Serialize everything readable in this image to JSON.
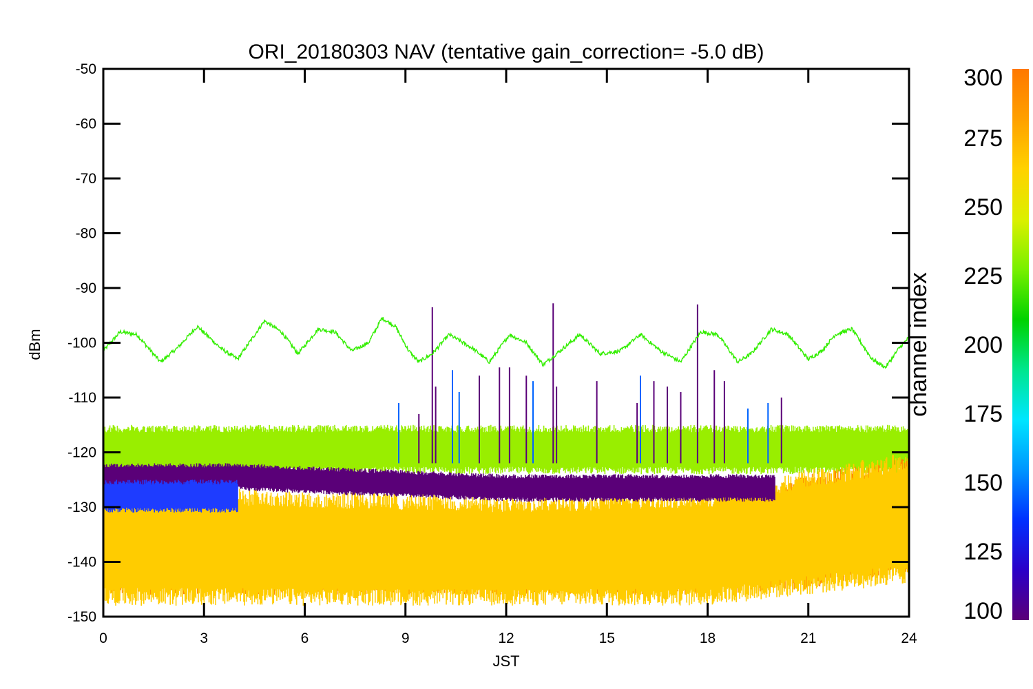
{
  "chart_data": {
    "type": "line",
    "title": "ORI_20180303 NAV (tentative gain_correction= -5.0 dB)",
    "xlabel": "JST",
    "ylabel": "dBm",
    "xlim": [
      0,
      24
    ],
    "ylim": [
      -150,
      -50
    ],
    "xticks": [
      "0",
      "3",
      "6",
      "9",
      "12",
      "15",
      "18",
      "21",
      "24"
    ],
    "yticks": [
      "-50",
      "-60",
      "-70",
      "-80",
      "-90",
      "-100",
      "-110",
      "-120",
      "-130",
      "-140",
      "-150"
    ],
    "grid": false,
    "colorbar": {
      "label": "channel index",
      "range": [
        100,
        300
      ],
      "ticks": [
        "300",
        "275",
        "250",
        "225",
        "200",
        "175",
        "150",
        "125",
        "100"
      ],
      "colors": [
        "#5a0078",
        "#2a00c8",
        "#0030ff",
        "#0096ff",
        "#00e6ff",
        "#00e68c",
        "#00d200",
        "#78f000",
        "#dcf000",
        "#ffd200",
        "#ffa000",
        "#ff7800"
      ]
    },
    "series": [
      {
        "color": "#33ee00",
        "style": "sinusoid",
        "x": [
          0,
          0.5,
          1.0,
          1.7,
          2.2,
          2.8,
          3.5,
          4.0,
          4.8,
          5.3,
          5.8,
          6.4,
          6.9,
          7.4,
          7.9,
          8.3,
          8.7,
          9.1,
          9.4,
          9.8,
          10.3,
          11.0,
          11.5,
          12.1,
          12.6,
          13.1,
          13.7,
          14.2,
          14.8,
          15.4,
          16.0,
          16.6,
          17.2,
          17.8,
          18.3,
          18.9,
          19.3,
          19.9,
          20.4,
          21.0,
          21.4,
          21.8,
          22.3,
          22.9,
          23.3,
          23.7,
          24.0
        ],
        "y": [
          -101.5,
          -98,
          -98.5,
          -103.5,
          -101,
          -97,
          -101,
          -103,
          -96,
          -98,
          -102,
          -97.5,
          -98,
          -101.5,
          -100,
          -95.5,
          -97,
          -101.5,
          -103.5,
          -102,
          -98.5,
          -101,
          -103.5,
          -98.5,
          -100,
          -104,
          -101,
          -98.5,
          -102,
          -101.5,
          -98.5,
          -101.5,
          -103.5,
          -98,
          -98.5,
          -103.5,
          -102,
          -97.5,
          -98.5,
          -103,
          -101.5,
          -98.5,
          -97.5,
          -103,
          -104.5,
          -101,
          -99
        ]
      },
      {
        "color": "#99ee00",
        "style": "noise-band",
        "x": [
          0,
          6,
          12,
          18,
          24
        ],
        "y_low": [
          -124,
          -124,
          -124,
          -124,
          -124
        ],
        "y_high": [
          -115,
          -115,
          -115,
          -115,
          -115
        ]
      },
      {
        "color": "#ff8800",
        "style": "noise-band",
        "x": [
          0,
          6,
          12,
          18,
          21,
          24
        ],
        "y_low": [
          -146,
          -146,
          -146,
          -146,
          -145,
          -142
        ],
        "y_high": [
          -129,
          -130,
          -131,
          -130,
          -124,
          -121
        ]
      },
      {
        "color": "#ffcc00",
        "style": "noise-band",
        "x": [
          0,
          6,
          12,
          18,
          21,
          24
        ],
        "y_low": [
          -148,
          -148,
          -148,
          -148,
          -146,
          -144
        ],
        "y_high": [
          -126,
          -127,
          -128,
          -127,
          -123,
          -120
        ]
      },
      {
        "color": "#5a0078",
        "style": "noise-band",
        "x": [
          0,
          4,
          8,
          12,
          16,
          20
        ],
        "y_low": [
          -127,
          -127,
          -128,
          -129,
          -129,
          -129
        ],
        "y_high": [
          -122,
          -122,
          -123,
          -124,
          -124,
          -124
        ]
      },
      {
        "color": "#1e3cff",
        "style": "noise-band",
        "x": [
          0,
          4
        ],
        "y_low": [
          -131,
          -131
        ],
        "y_high": [
          -125,
          -125
        ]
      }
    ],
    "spikes": [
      {
        "x": 9.8,
        "y": -93.5,
        "color": "#5a0078"
      },
      {
        "x": 9.9,
        "y": -108,
        "color": "#5a0078"
      },
      {
        "x": 10.4,
        "y": -105,
        "color": "#0064ff"
      },
      {
        "x": 10.6,
        "y": -109,
        "color": "#0064ff"
      },
      {
        "x": 11.2,
        "y": -106,
        "color": "#5a0078"
      },
      {
        "x": 11.8,
        "y": -104.5,
        "color": "#5a0078"
      },
      {
        "x": 12.1,
        "y": -104.5,
        "color": "#5a0078"
      },
      {
        "x": 12.6,
        "y": -106,
        "color": "#5a0078"
      },
      {
        "x": 12.8,
        "y": -107,
        "color": "#0064ff"
      },
      {
        "x": 13.4,
        "y": -92.8,
        "color": "#5a0078"
      },
      {
        "x": 13.5,
        "y": -108,
        "color": "#5a0078"
      },
      {
        "x": 14.7,
        "y": -107,
        "color": "#5a0078"
      },
      {
        "x": 15.9,
        "y": -111,
        "color": "#5a0078"
      },
      {
        "x": 16.0,
        "y": -106,
        "color": "#0064ff"
      },
      {
        "x": 16.4,
        "y": -107,
        "color": "#5a0078"
      },
      {
        "x": 16.8,
        "y": -108,
        "color": "#5a0078"
      },
      {
        "x": 17.2,
        "y": -109,
        "color": "#5a0078"
      },
      {
        "x": 17.7,
        "y": -93,
        "color": "#5a0078"
      },
      {
        "x": 18.2,
        "y": -105,
        "color": "#5a0078"
      },
      {
        "x": 18.5,
        "y": -107,
        "color": "#5a0078"
      },
      {
        "x": 19.2,
        "y": -112,
        "color": "#0064ff"
      },
      {
        "x": 19.8,
        "y": -111,
        "color": "#0064ff"
      },
      {
        "x": 20.2,
        "y": -110,
        "color": "#5a0078"
      },
      {
        "x": 8.8,
        "y": -111,
        "color": "#0064ff"
      },
      {
        "x": 9.4,
        "y": -113,
        "color": "#5a0078"
      }
    ]
  }
}
